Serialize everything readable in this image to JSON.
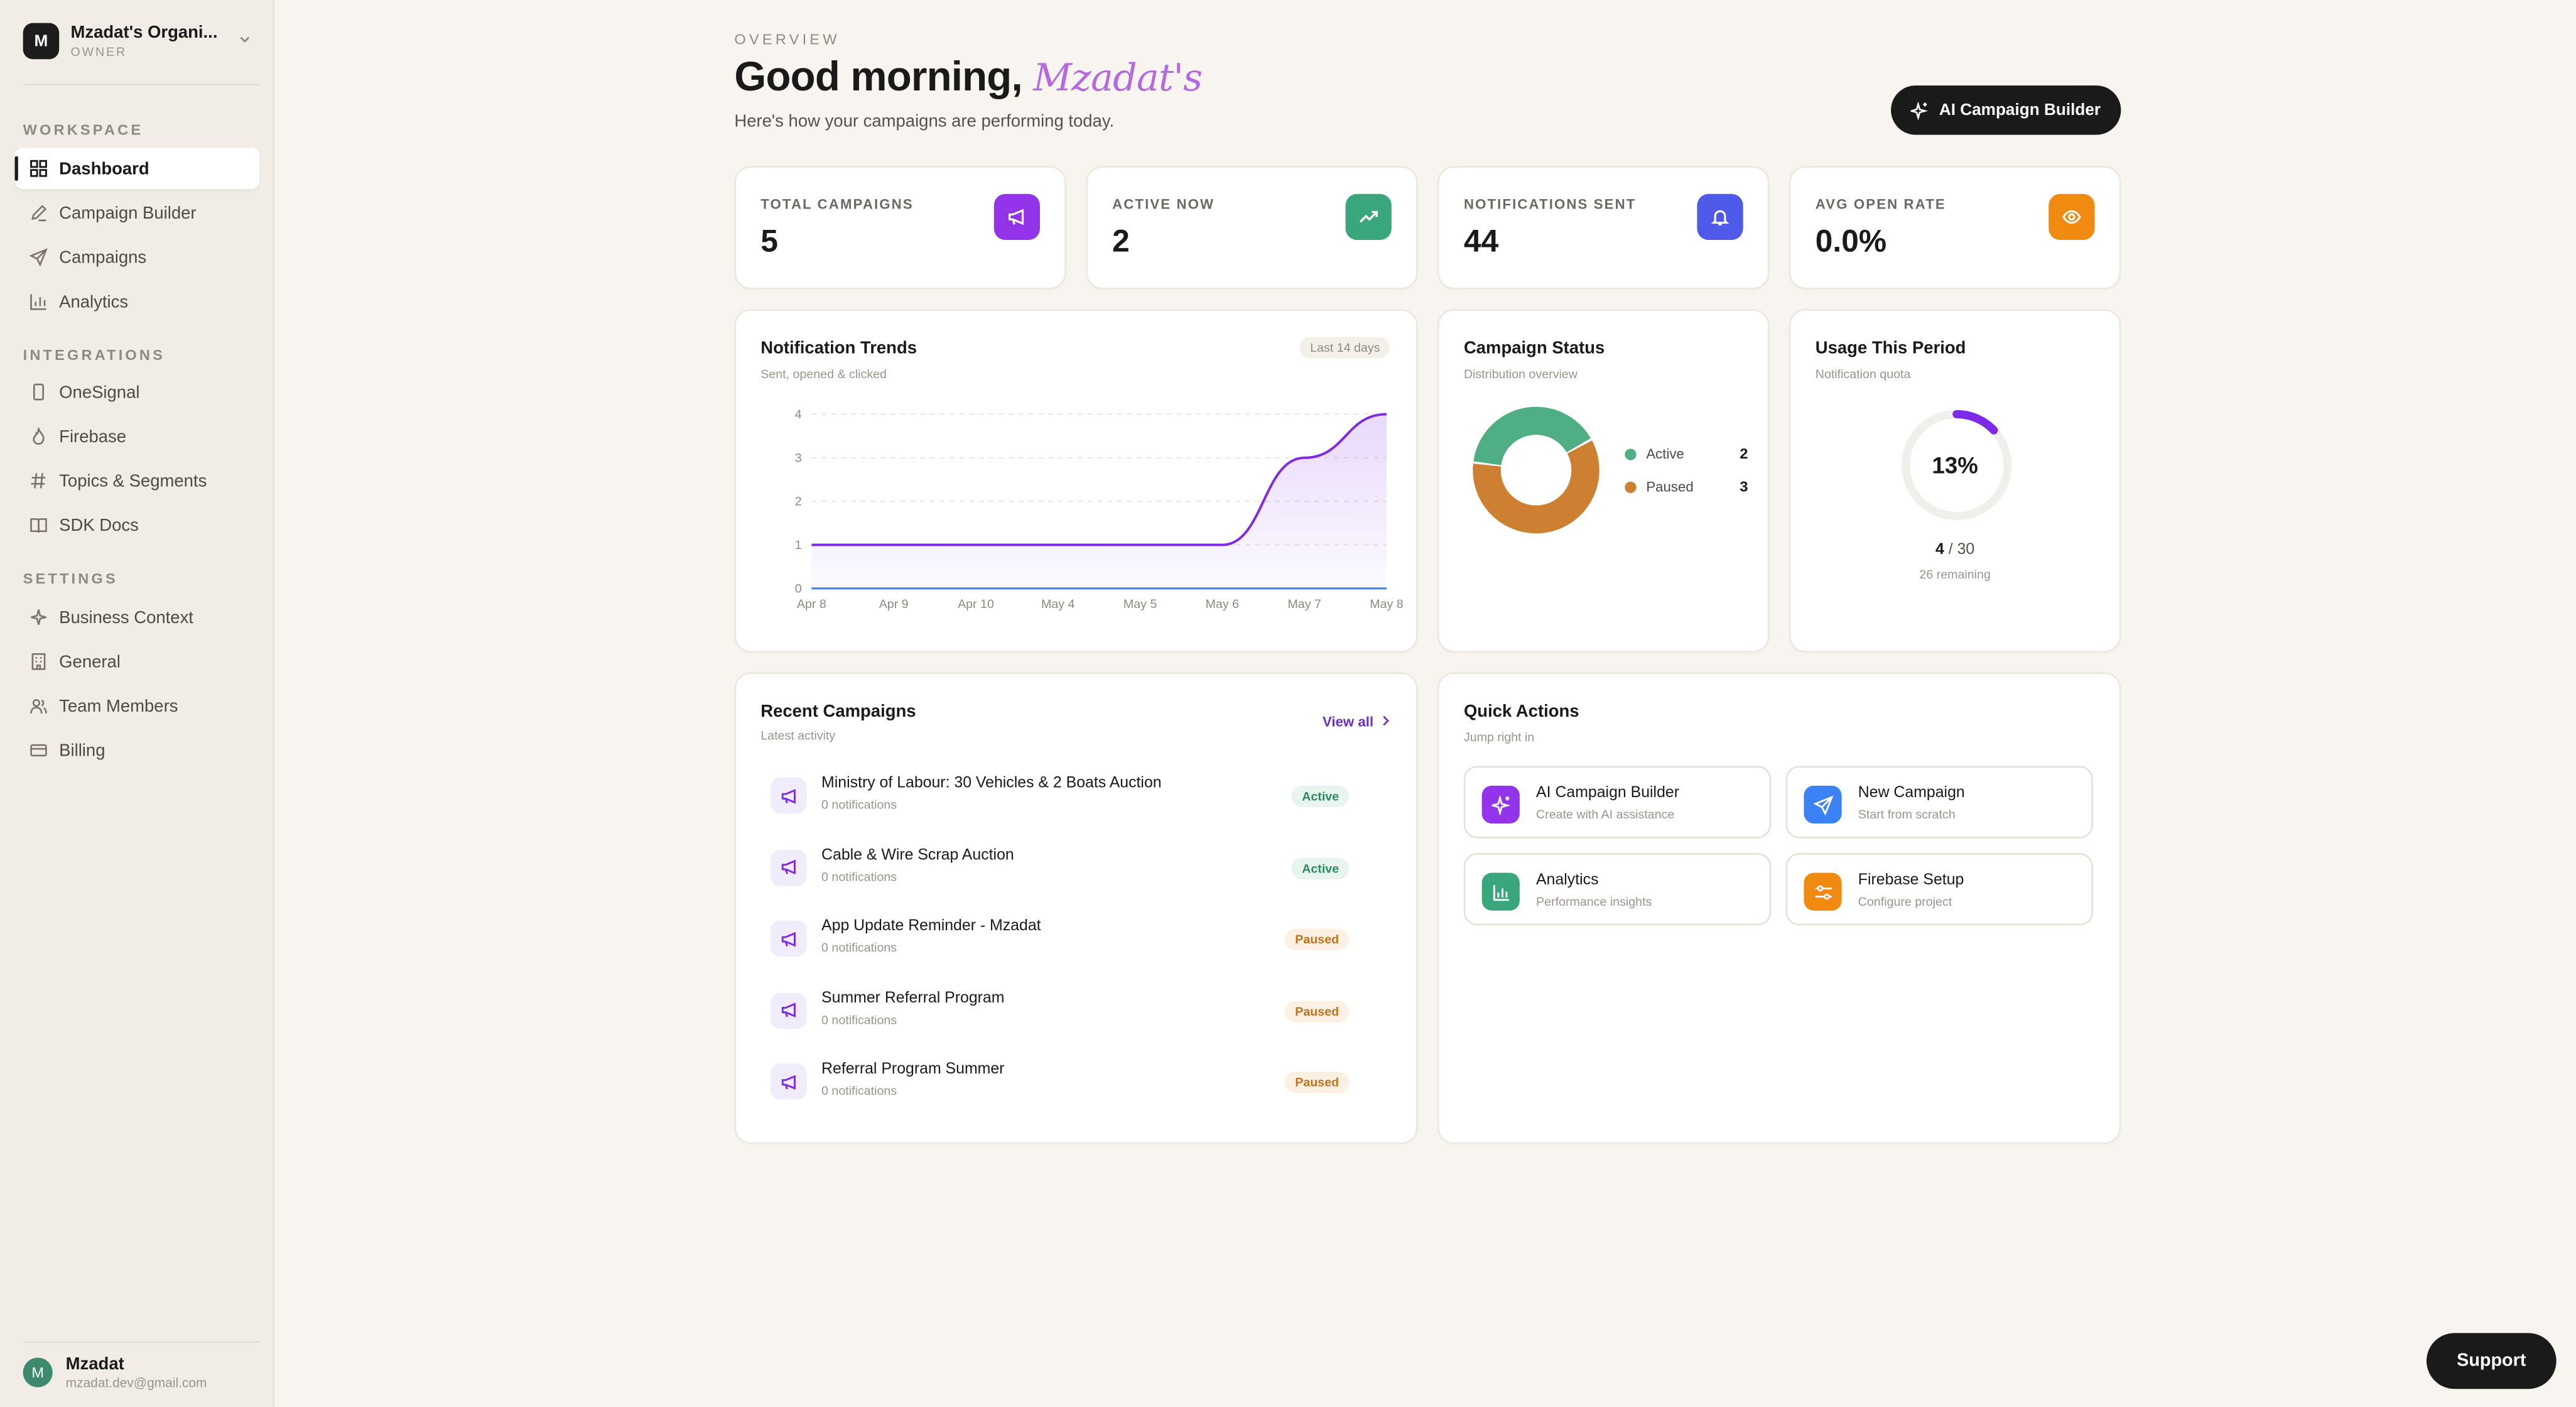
{
  "sidebar": {
    "org": {
      "initial": "M",
      "name": "Mzadat's Organi...",
      "role": "OWNER"
    },
    "sections": [
      {
        "label": "WORKSPACE",
        "items": [
          {
            "label": "Dashboard",
            "icon": "grid-icon",
            "active": true
          },
          {
            "label": "Campaign Builder",
            "icon": "pen-icon"
          },
          {
            "label": "Campaigns",
            "icon": "send-icon"
          },
          {
            "label": "Analytics",
            "icon": "bar-chart-icon"
          }
        ]
      },
      {
        "label": "INTEGRATIONS",
        "items": [
          {
            "label": "OneSignal",
            "icon": "phone-icon"
          },
          {
            "label": "Firebase",
            "icon": "flame-icon"
          },
          {
            "label": "Topics & Segments",
            "icon": "hash-icon"
          },
          {
            "label": "SDK Docs",
            "icon": "book-icon"
          }
        ]
      },
      {
        "label": "SETTINGS",
        "items": [
          {
            "label": "Business Context",
            "icon": "sparkle-icon"
          },
          {
            "label": "General",
            "icon": "building-icon"
          },
          {
            "label": "Team Members",
            "icon": "users-icon"
          },
          {
            "label": "Billing",
            "icon": "credit-card-icon"
          }
        ]
      }
    ],
    "user": {
      "initial": "M",
      "name": "Mzadat",
      "email": "mzadat.dev@gmail.com"
    }
  },
  "header": {
    "overline": "OVERVIEW",
    "greeting": "Good morning,",
    "greeting_name": "Mzadat's",
    "subtitle": "Here's how your campaigns are performing today.",
    "ai_button": "AI Campaign Builder"
  },
  "stats": [
    {
      "label": "TOTAL CAMPAIGNS",
      "value": "5",
      "icon": "megaphone-icon",
      "color": "#9333ea"
    },
    {
      "label": "ACTIVE NOW",
      "value": "2",
      "icon": "trending-up-icon",
      "color": "#3aa67c"
    },
    {
      "label": "NOTIFICATIONS SENT",
      "value": "44",
      "icon": "bell-icon",
      "color": "#4f5ae8"
    },
    {
      "label": "AVG OPEN RATE",
      "value": "0.0%",
      "icon": "eye-icon",
      "color": "#f08a10"
    }
  ],
  "trends": {
    "title": "Notification Trends",
    "subtitle": "Sent, opened & clicked",
    "range_pill": "Last 14 days"
  },
  "chart_data": {
    "type": "area",
    "title": "Notification Trends",
    "x": [
      "Apr 8",
      "Apr 9",
      "Apr 10",
      "May 4",
      "May 5",
      "May 6",
      "May 7",
      "May 8"
    ],
    "ylim": [
      0,
      4
    ],
    "yticks": [
      0,
      1,
      2,
      3,
      4
    ],
    "grid": true,
    "series": [
      {
        "values": [
          1,
          1,
          1,
          1,
          1,
          1,
          3,
          4
        ],
        "color": "#7c2ae8"
      },
      {
        "values": [
          0,
          0,
          0,
          0,
          0,
          0,
          0,
          0
        ],
        "color": "#3b82f6"
      }
    ]
  },
  "status": {
    "title": "Campaign Status",
    "subtitle": "Distribution overview",
    "legend": [
      {
        "label": "Active",
        "value": 2,
        "color": "#4fae84"
      },
      {
        "label": "Paused",
        "value": 3,
        "color": "#cd7f32"
      }
    ]
  },
  "usage": {
    "title": "Usage This Period",
    "subtitle": "Notification quota",
    "percent_text": "13%",
    "percent": 0.13,
    "used": "4",
    "total": " / 30",
    "remaining": "26 remaining",
    "color": "#7c2ae8"
  },
  "recent": {
    "title": "Recent Campaigns",
    "subtitle": "Latest activity",
    "view_all": "View all",
    "items": [
      {
        "name": "Ministry of Labour: 30 Vehicles & 2 Boats Auction",
        "meta": "0 notifications",
        "status": "Active"
      },
      {
        "name": "Cable & Wire Scrap Auction",
        "meta": "0 notifications",
        "status": "Active"
      },
      {
        "name": "App Update Reminder - Mzadat",
        "meta": "0 notifications",
        "status": "Paused"
      },
      {
        "name": "Summer Referral Program",
        "meta": "0 notifications",
        "status": "Paused"
      },
      {
        "name": "Referral Program Summer",
        "meta": "0 notifications",
        "status": "Paused"
      }
    ]
  },
  "quick_actions": {
    "title": "Quick Actions",
    "subtitle": "Jump right in",
    "items": [
      {
        "title": "AI Campaign Builder",
        "subtitle": "Create with AI assistance",
        "icon": "sparkle-icon",
        "color": "#9333ea"
      },
      {
        "title": "New Campaign",
        "subtitle": "Start from scratch",
        "icon": "send-icon",
        "color": "#3b82f6"
      },
      {
        "title": "Analytics",
        "subtitle": "Performance insights",
        "icon": "bar-chart-icon",
        "color": "#3aa67c"
      },
      {
        "title": "Firebase Setup",
        "subtitle": "Configure project",
        "icon": "sliders-icon",
        "color": "#f08a10"
      }
    ]
  },
  "support_label": "Support"
}
